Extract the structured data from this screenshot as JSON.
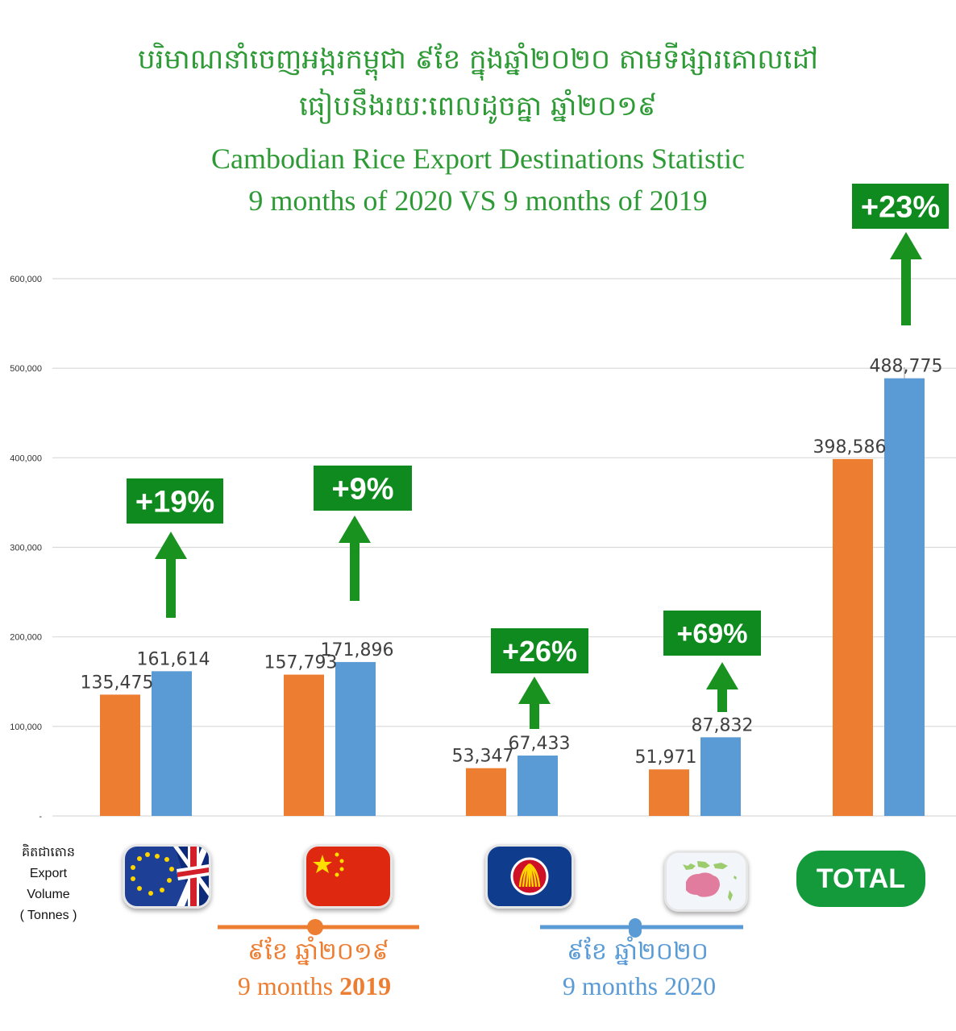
{
  "title": {
    "km_line1": "បរិមាណនាំចេញអង្ករកម្ពុជា ៩ខែ ក្នុងឆ្នាំ២០២០ តាមទីផ្សារគោលដៅ",
    "km_line2": "ធៀបនឹងរយៈពេលដូចគ្នា ឆ្នាំ២០១៩",
    "en_line1": "Cambodian Rice Export Destinations Statistic",
    "en_line2": "9 months of 2020 VS 9 months of 2019"
  },
  "y_axis": {
    "km": "គិតជាតោន",
    "en1": "Export",
    "en2": "Volume",
    "en3": "( Tonnes )"
  },
  "total_label": "TOTAL",
  "legend": {
    "s2019_km": "៩ខែ ឆ្នាំ២០១៩",
    "s2019_en_prefix": "9 months ",
    "s2019_en_year": "2019",
    "s2020_km": "៩ខែ ឆ្នាំ២០២០",
    "s2020_en": "9 months 2020"
  },
  "colors": {
    "title_green": "#2e9a36",
    "series_2019": "#ed7d31",
    "series_2020": "#5b9bd5",
    "badge_green": "#0f8a1e",
    "arrow_green": "#1a921f",
    "grid": "#d9d9d9"
  },
  "icons": [
    "eu-uk-flag-icon",
    "china-flag-icon",
    "asean-flag-icon",
    "australia-map-icon"
  ],
  "chart_data": {
    "type": "bar",
    "categories": [
      "EU & UK",
      "China",
      "ASEAN",
      "Other markets",
      "TOTAL"
    ],
    "series": [
      {
        "name": "9 months 2019",
        "values": [
          135475,
          157793,
          53347,
          51971,
          398586
        ]
      },
      {
        "name": "9 months 2020",
        "values": [
          161614,
          171896,
          67433,
          87832,
          488775
        ]
      }
    ],
    "value_labels_2019": [
      "135,475",
      "157,793",
      "53,347",
      "51,971",
      "398,586"
    ],
    "value_labels_2020": [
      "161,614",
      "171,896",
      "67,433",
      "87,832",
      "488,775"
    ],
    "growth_labels": [
      "+19%",
      "+9%",
      "+26%",
      "+69%",
      "+23%"
    ],
    "ylim": [
      0,
      600000
    ],
    "yticks": [
      0,
      100000,
      200000,
      300000,
      400000,
      500000,
      600000
    ],
    "ytick_labels": [
      "-",
      "100,000",
      "200,000",
      "300,000",
      "400,000",
      "500,000",
      "600,000"
    ],
    "grid": true
  }
}
